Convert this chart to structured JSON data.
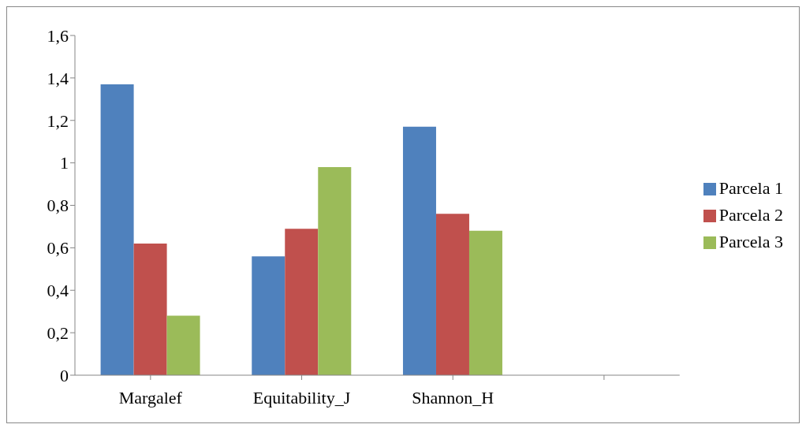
{
  "chart_data": {
    "type": "bar",
    "categories": [
      "Margalef",
      "Equitability_J",
      "Shannon_H",
      null
    ],
    "series": [
      {
        "name": "Parcela 1",
        "color": "#4f81bd",
        "values": [
          1.37,
          0.56,
          1.17,
          null
        ]
      },
      {
        "name": "Parcela 2",
        "color": "#c0504d",
        "values": [
          0.62,
          0.69,
          0.76,
          null
        ]
      },
      {
        "name": "Parcela 3",
        "color": "#9bbb59",
        "values": [
          0.28,
          0.98,
          0.68,
          null
        ]
      }
    ],
    "ylim": [
      0,
      1.6
    ],
    "yticks": [
      0,
      {
        "value": 0.2,
        "label": "0,2"
      },
      {
        "value": 0.4,
        "label": "0,4"
      },
      {
        "value": 0.6,
        "label": "0,6"
      },
      {
        "value": 0.8,
        "label": "0,8"
      },
      1,
      {
        "value": 1.2,
        "label": "1,2"
      },
      {
        "value": 1.4,
        "label": "1,4"
      },
      {
        "value": 1.6,
        "label": "1,6"
      }
    ],
    "grid": false,
    "legend": "right"
  }
}
